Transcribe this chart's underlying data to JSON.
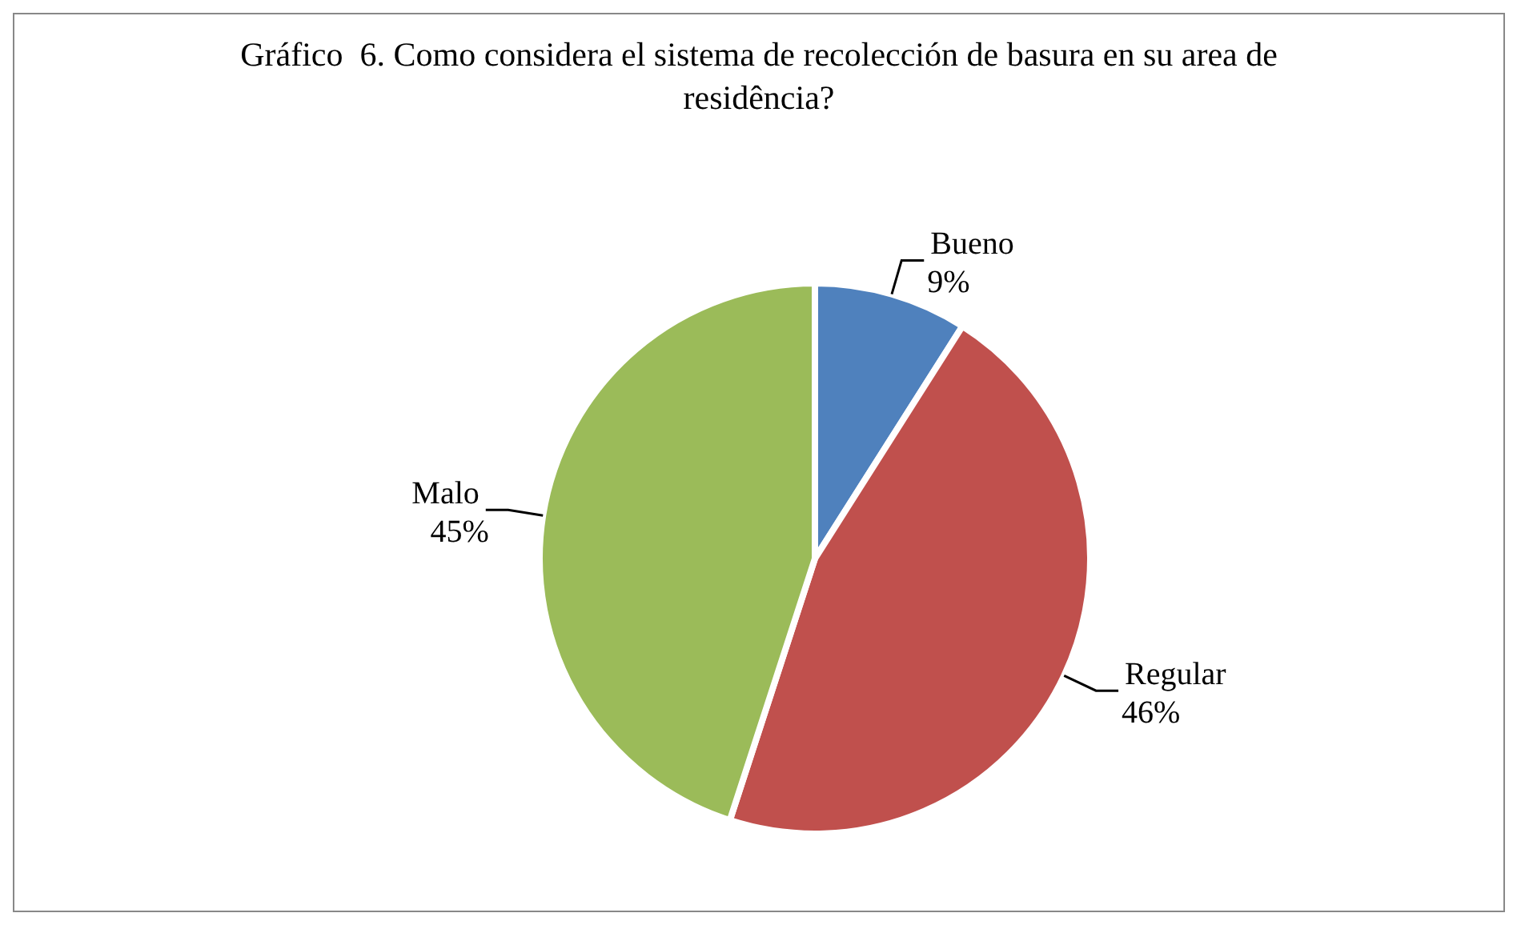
{
  "chart_data": {
    "type": "pie",
    "title": "Gráfico  6. Como considera el sistema de recolección de basura en su area de residência?",
    "categories": [
      "Bueno",
      "Regular",
      "Malo"
    ],
    "values": [
      9,
      46,
      45
    ],
    "value_labels": [
      "9%",
      "46%",
      "45%"
    ],
    "colors": [
      "#4f81bd",
      "#c0504d",
      "#9bbb59"
    ]
  }
}
